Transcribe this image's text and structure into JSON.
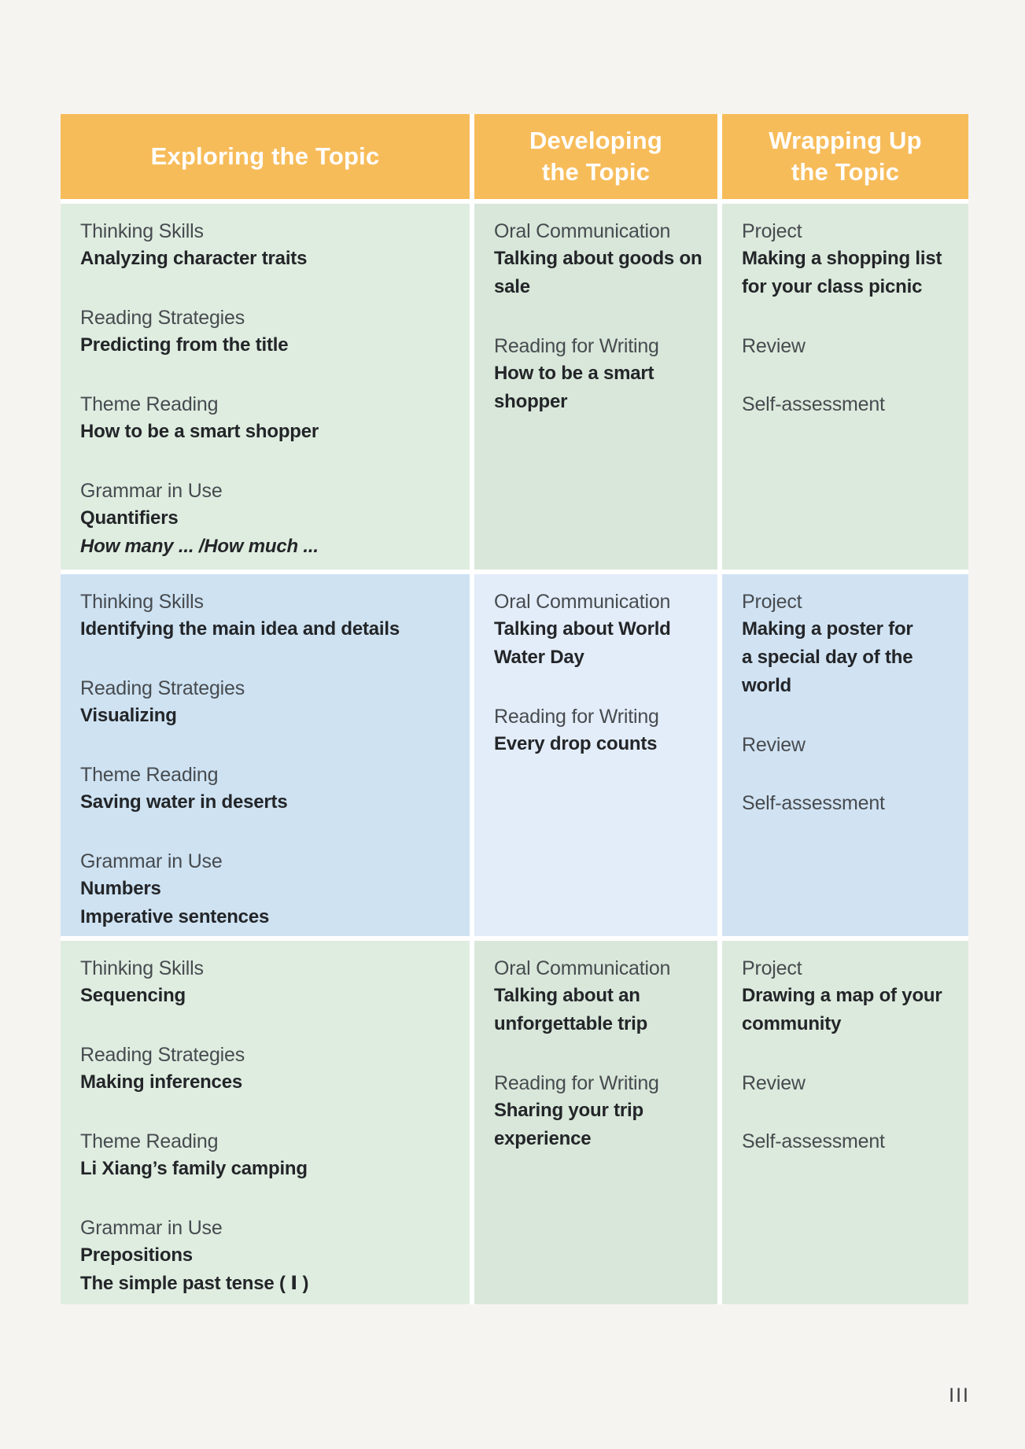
{
  "page": {
    "background": "#f6f4f1",
    "page_number": "III"
  },
  "table": {
    "header": {
      "background": "#f7bc5a",
      "text_color": "#ffffff",
      "columns": [
        "Exploring the Topic",
        "Developing\nthe Topic",
        "Wrapping Up\nthe Topic"
      ]
    },
    "row_colors": {
      "green": [
        "#dfede1",
        "#d8e7da",
        "#dceadd"
      ],
      "blue": [
        "#cee2f2",
        "#e3edf9",
        "#d1e3f3"
      ]
    },
    "rows": [
      {
        "theme": "green",
        "cells": [
          {
            "sections": [
              {
                "label": "Thinking Skills",
                "bold": "Analyzing character traits"
              },
              {
                "label": "Reading Strategies",
                "bold": "Predicting from the title"
              },
              {
                "label": "Theme Reading",
                "bold": "How to be a smart shopper"
              },
              {
                "label": "Grammar in Use",
                "bold": "Quantifiers",
                "italic": "How many ... /How much ..."
              }
            ]
          },
          {
            "sections": [
              {
                "label": "Oral Communication",
                "bold": "Talking about goods on\nsale"
              },
              {
                "label": "Reading for Writing",
                "bold": "How to be a smart\nshopper"
              }
            ]
          },
          {
            "sections": [
              {
                "label": "Project",
                "bold": "Making a shopping list\nfor your class picnic"
              },
              {
                "label": "Review"
              },
              {
                "label": "Self-assessment"
              }
            ]
          }
        ]
      },
      {
        "theme": "blue",
        "cells": [
          {
            "sections": [
              {
                "label": "Thinking Skills",
                "bold": "Identifying the main idea and details"
              },
              {
                "label": "Reading Strategies",
                "bold": "Visualizing"
              },
              {
                "label": "Theme Reading",
                "bold": "Saving water in deserts"
              },
              {
                "label": "Grammar in Use",
                "bold": "Numbers\nImperative sentences"
              }
            ]
          },
          {
            "sections": [
              {
                "label": "Oral Communication",
                "bold": "Talking about World\nWater Day"
              },
              {
                "label": "Reading for Writing",
                "bold": "Every drop counts"
              }
            ]
          },
          {
            "sections": [
              {
                "label": "Project",
                "bold": "Making a poster for\na special day of the\nworld"
              },
              {
                "label": "Review"
              },
              {
                "label": "Self-assessment"
              }
            ]
          }
        ]
      },
      {
        "theme": "green",
        "cells": [
          {
            "sections": [
              {
                "label": "Thinking Skills",
                "bold": "Sequencing"
              },
              {
                "label": "Reading Strategies",
                "bold": "Making inferences"
              },
              {
                "label": "Theme Reading",
                "bold": "Li Xiang’s family camping"
              },
              {
                "label": "Grammar in Use",
                "bold": "Prepositions\nThe simple past tense ( Ⅰ )"
              }
            ]
          },
          {
            "sections": [
              {
                "label": "Oral Communication",
                "bold": "Talking about an\nunforgettable trip"
              },
              {
                "label": "Reading for Writing",
                "bold": "Sharing your trip\nexperience"
              }
            ]
          },
          {
            "sections": [
              {
                "label": "Project",
                "bold": "Drawing a map of your\ncommunity"
              },
              {
                "label": "Review"
              },
              {
                "label": "Self-assessment"
              }
            ]
          }
        ]
      }
    ]
  }
}
